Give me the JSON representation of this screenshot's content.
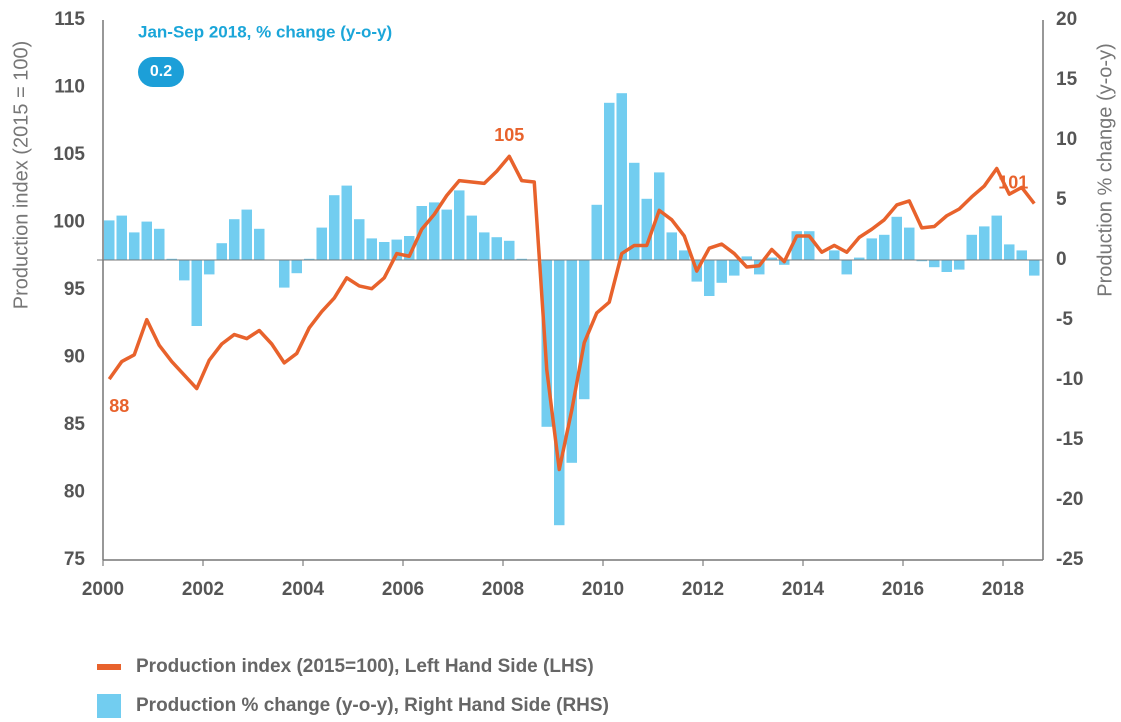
{
  "chart_data": {
    "type": "bar-line",
    "subtitle": "Jan-Sep 2018, % change (y-o-y)",
    "summary_value": 0.2,
    "y_label": "Production index (2015 = 100)",
    "y2_label": "Production % change (y-o-y)",
    "x": [
      2000,
      2000.25,
      2000.5,
      2000.75,
      2001,
      2001.25,
      2001.5,
      2001.75,
      2002,
      2002.25,
      2002.5,
      2002.75,
      2003,
      2003.25,
      2003.5,
      2003.75,
      2004,
      2004.25,
      2004.5,
      2004.75,
      2005,
      2005.25,
      2005.5,
      2005.75,
      2006,
      2006.25,
      2006.5,
      2006.75,
      2007,
      2007.25,
      2007.5,
      2007.75,
      2008,
      2008.25,
      2008.5,
      2008.75,
      2009,
      2009.25,
      2009.5,
      2009.75,
      2010,
      2010.25,
      2010.5,
      2010.75,
      2011,
      2011.25,
      2011.5,
      2011.75,
      2012,
      2012.25,
      2012.5,
      2012.75,
      2013,
      2013.25,
      2013.5,
      2013.75,
      2014,
      2014.25,
      2014.5,
      2014.75,
      2015,
      2015.25,
      2015.5,
      2015.75,
      2016,
      2016.25,
      2016.5,
      2016.75,
      2017,
      2017.25,
      2017.5,
      2017.75,
      2018,
      2018.25,
      2018.5
    ],
    "series": [
      {
        "name": "Production index (2015=100), Left Hand Side (LHS)",
        "type": "line",
        "color": "#e8622c",
        "values": [
          88.4,
          89.7,
          90.2,
          92.8,
          90.9,
          89.7,
          88.7,
          87.7,
          89.8,
          91.0,
          91.7,
          91.4,
          92.0,
          91.0,
          89.6,
          90.3,
          92.2,
          93.4,
          94.4,
          95.9,
          95.3,
          95.1,
          95.9,
          97.7,
          97.5,
          99.5,
          100.6,
          102.0,
          103.1,
          103.0,
          102.9,
          103.8,
          104.9,
          103.1,
          103.0,
          89.1,
          81.7,
          86.1,
          91.1,
          93.3,
          94.1,
          97.7,
          98.3,
          98.3,
          100.9,
          100.2,
          99.0,
          96.4,
          98.1,
          98.4,
          97.7,
          96.7,
          96.8,
          98.0,
          97.1,
          99.0,
          99.0,
          97.8,
          98.3,
          97.8,
          98.9,
          99.5,
          100.2,
          101.3,
          101.6,
          99.6,
          99.7,
          100.5,
          101.0,
          101.9,
          102.7,
          104.0,
          102.1,
          102.6,
          101.4
        ],
        "value_labels": [
          "88",
          null,
          null,
          null,
          null,
          null,
          null,
          null,
          null,
          null,
          null,
          null,
          null,
          null,
          null,
          null,
          null,
          null,
          null,
          null,
          null,
          null,
          null,
          null,
          null,
          null,
          null,
          null,
          null,
          null,
          null,
          null,
          "105",
          null,
          null,
          null,
          null,
          null,
          null,
          null,
          null,
          null,
          null,
          null,
          null,
          null,
          null,
          null,
          null,
          null,
          null,
          null,
          null,
          null,
          null,
          null,
          null,
          null,
          null,
          null,
          null,
          null,
          null,
          null,
          null,
          null,
          null,
          null,
          null,
          null,
          null,
          null,
          null,
          null,
          "101"
        ]
      },
      {
        "name": "Production % change (y-o-y), Right Hand Side (RHS)",
        "type": "bar",
        "axis": "y2",
        "color": "#72cdf0",
        "values": [
          3.3,
          3.7,
          2.3,
          3.2,
          2.6,
          0.1,
          -1.7,
          -5.5,
          -1.2,
          1.4,
          3.4,
          4.2,
          2.6,
          0,
          -2.3,
          -1.1,
          0.1,
          2.7,
          5.4,
          6.2,
          3.4,
          1.8,
          1.5,
          1.7,
          2,
          4.5,
          4.8,
          4.2,
          5.8,
          3.7,
          2.3,
          1.9,
          1.6,
          0.1,
          0,
          -13.9,
          -22.1,
          -16.9,
          -11.6,
          4.6,
          13.1,
          13.9,
          8.1,
          5.1,
          7.3,
          2.3,
          0.8,
          -1.8,
          -3.0,
          -1.9,
          -1.3,
          0.3,
          -1.2,
          0.2,
          -0.4,
          2.4,
          2.4,
          0,
          0.8,
          -1.2,
          0.2,
          1.8,
          2.1,
          3.6,
          2.7,
          -0.1,
          -0.6,
          -1.0,
          -0.8,
          2.1,
          2.8,
          3.7,
          1.3,
          0.8,
          -1.3
        ]
      }
    ],
    "xlim": [
      2000,
      2018.8
    ],
    "xticks": [
      2000,
      2002,
      2004,
      2006,
      2008,
      2010,
      2012,
      2014,
      2016,
      2018
    ],
    "ylim": [
      75,
      115
    ],
    "yticks": [
      75,
      80,
      85,
      90,
      95,
      100,
      105,
      110,
      115
    ],
    "y2lim": [
      -25,
      20
    ],
    "y2ticks": [
      -25,
      -20,
      -15,
      -10,
      -5,
      0,
      5,
      10,
      15,
      20
    ]
  }
}
